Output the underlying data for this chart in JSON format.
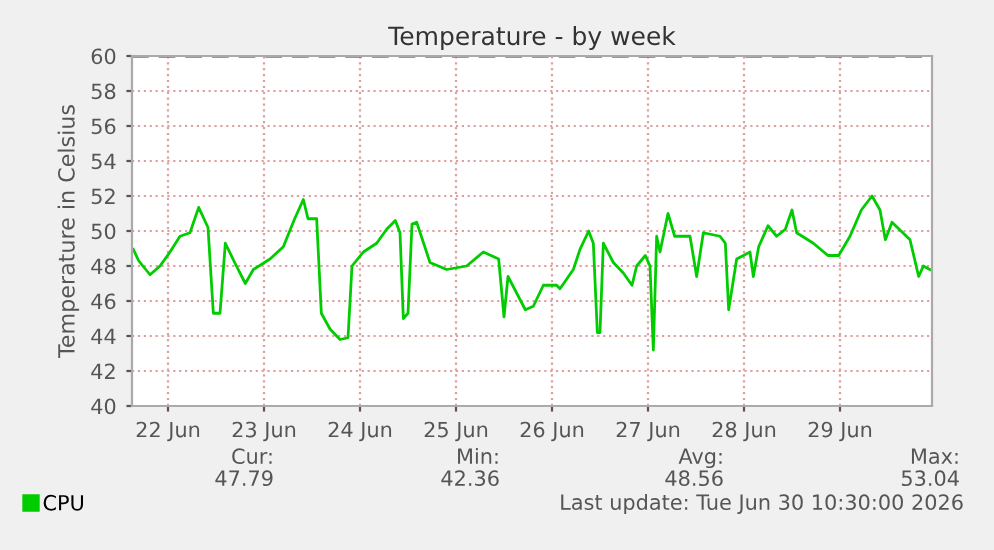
{
  "chart_data": {
    "type": "line",
    "title": "Temperature - by week",
    "ylabel": "Temperature in Celsius",
    "x": [
      "2026-06-22T03:20",
      "2026-06-22T04:40",
      "2026-06-22T07:30",
      "2026-06-22T10:00",
      "2026-06-22T12:30",
      "2026-06-22T15:00",
      "2026-06-22T17:30",
      "2026-06-22T19:40",
      "2026-06-22T22:00",
      "2026-06-22T23:20",
      "2026-06-23T01:00",
      "2026-06-23T02:20",
      "2026-06-23T04:40",
      "2026-06-23T07:20",
      "2026-06-23T09:20",
      "2026-06-23T13:30",
      "2026-06-23T16:50",
      "2026-06-23T19:40",
      "2026-06-23T21:50",
      "2026-06-23T23:00",
      "2026-06-24T01:10",
      "2026-06-24T02:20",
      "2026-06-24T04:30",
      "2026-06-24T07:00",
      "2026-06-24T09:00",
      "2026-06-24T10:00",
      "2026-06-24T12:50",
      "2026-06-24T16:10",
      "2026-06-24T18:40",
      "2026-06-24T20:50",
      "2026-06-24T22:00",
      "2026-06-24T22:50",
      "2026-06-25T00:00",
      "2026-06-25T01:00",
      "2026-06-25T02:10",
      "2026-06-25T05:30",
      "2026-06-25T09:40",
      "2026-06-25T14:40",
      "2026-06-25T18:50",
      "2026-06-25T22:40",
      "2026-06-26T00:00",
      "2026-06-26T01:00",
      "2026-06-26T05:20",
      "2026-06-26T07:20",
      "2026-06-26T09:50",
      "2026-06-26T13:10",
      "2026-06-26T14:00",
      "2026-06-26T17:20",
      "2026-06-26T19:00",
      "2026-06-26T21:10",
      "2026-06-26T22:20",
      "2026-06-26T23:20",
      "2026-06-27T00:00",
      "2026-06-27T00:50",
      "2026-06-27T03:20",
      "2026-06-27T05:50",
      "2026-06-27T08:00",
      "2026-06-27T09:10",
      "2026-06-27T11:20",
      "2026-06-27T12:30",
      "2026-06-27T13:20",
      "2026-06-27T14:10",
      "2026-06-27T15:00",
      "2026-06-27T17:00",
      "2026-06-27T18:40",
      "2026-06-27T22:30",
      "2026-06-28T00:10",
      "2026-06-28T01:50",
      "2026-06-28T06:00",
      "2026-06-28T07:20",
      "2026-06-28T08:10",
      "2026-06-28T10:10",
      "2026-06-28T13:30",
      "2026-06-28T14:20",
      "2026-06-28T15:40",
      "2026-06-28T18:00",
      "2026-06-28T20:10",
      "2026-06-28T22:20",
      "2026-06-29T00:00",
      "2026-06-29T01:10",
      "2026-06-29T05:20",
      "2026-06-29T09:00",
      "2026-06-29T11:40",
      "2026-06-29T14:30",
      "2026-06-29T17:20",
      "2026-06-29T20:00",
      "2026-06-29T22:00",
      "2026-06-29T23:20",
      "2026-06-30T01:00",
      "2026-06-30T05:30",
      "2026-06-30T07:40",
      "2026-06-30T08:50",
      "2026-06-30T10:30"
    ],
    "series": [
      {
        "name": "CPU",
        "color": "#00cc00",
        "values": [
          48.95,
          48.3,
          47.5,
          48.0,
          48.8,
          49.7,
          49.9,
          51.35,
          50.2,
          45.3,
          45.3,
          49.3,
          48.2,
          47.0,
          47.8,
          48.4,
          49.1,
          50.7,
          51.8,
          50.7,
          50.7,
          45.3,
          44.4,
          43.8,
          43.9,
          48.0,
          48.8,
          49.3,
          50.1,
          50.6,
          49.9,
          45.0,
          45.3,
          50.4,
          50.5,
          48.2,
          47.8,
          48.0,
          48.8,
          48.4,
          45.1,
          47.4,
          45.5,
          45.7,
          46.9,
          46.9,
          46.7,
          47.8,
          48.95,
          50.0,
          49.3,
          44.2,
          44.2,
          49.3,
          48.2,
          47.6,
          46.9,
          48.0,
          48.6,
          48.0,
          43.2,
          49.7,
          48.8,
          51.0,
          49.7,
          49.7,
          47.4,
          49.9,
          49.7,
          49.3,
          45.5,
          48.4,
          48.8,
          47.4,
          49.1,
          50.3,
          49.7,
          50.1,
          51.2,
          49.9,
          49.3,
          48.6,
          48.6,
          49.7,
          51.2,
          52.0,
          51.2,
          49.5,
          50.5,
          49.5,
          47.4,
          48.0,
          47.8
        ]
      }
    ],
    "xlim": [
      "2026-06-22T03:00",
      "2026-06-30T11:00"
    ],
    "xticks": [
      {
        "value": "2026-06-22T12:00",
        "label": "22 Jun"
      },
      {
        "value": "2026-06-23T12:00",
        "label": "23 Jun"
      },
      {
        "value": "2026-06-24T12:00",
        "label": "24 Jun"
      },
      {
        "value": "2026-06-25T12:00",
        "label": "25 Jun"
      },
      {
        "value": "2026-06-26T12:00",
        "label": "26 Jun"
      },
      {
        "value": "2026-06-27T12:00",
        "label": "27 Jun"
      },
      {
        "value": "2026-06-28T12:00",
        "label": "28 Jun"
      },
      {
        "value": "2026-06-29T12:00",
        "label": "29 Jun"
      }
    ],
    "ylim": [
      40,
      60
    ],
    "yticks": [
      40,
      42,
      44,
      46,
      48,
      50,
      52,
      54,
      56,
      58,
      60
    ],
    "ref_lines": [
      {
        "axis": "y",
        "value": 60,
        "color": "#00cc00",
        "line_style": "dashed"
      }
    ],
    "grid": true,
    "legend": "bottom left",
    "annotations": [
      "Cur:",
      "Min:",
      "Avg:",
      "Max:",
      "47.79",
      "42.36",
      "48.56",
      "53.04",
      "Last update: Tue Jun 30 10:30:00 2026"
    ]
  }
}
